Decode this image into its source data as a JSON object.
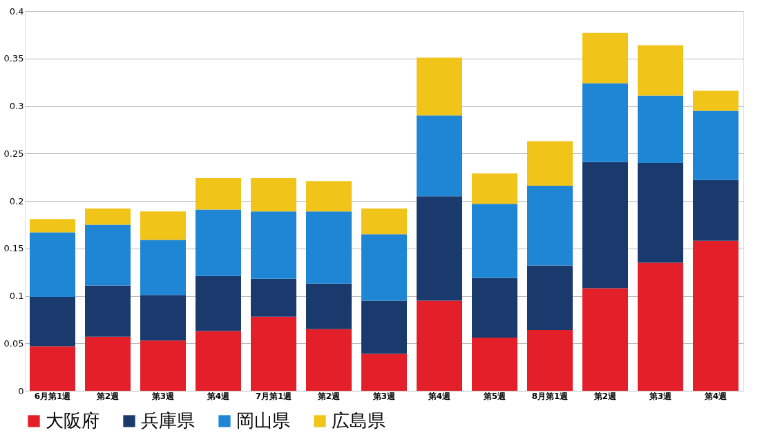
{
  "chart_data": {
    "type": "bar",
    "stacked": true,
    "categories": [
      "6月第1週",
      "第2週",
      "第3週",
      "第4週",
      "7月第1週",
      "第2週",
      "第3週",
      "第4週",
      "第5週",
      "8月第1週",
      "第2週",
      "第3週",
      "第4週"
    ],
    "series": [
      {
        "name": "大阪府",
        "color": "#e3202a",
        "values": [
          0.047,
          0.057,
          0.053,
          0.063,
          0.078,
          0.065,
          0.039,
          0.095,
          0.056,
          0.064,
          0.108,
          0.135,
          0.158
        ]
      },
      {
        "name": "兵庫県",
        "color": "#1a3a6e",
        "values": [
          0.052,
          0.054,
          0.048,
          0.058,
          0.04,
          0.048,
          0.056,
          0.11,
          0.063,
          0.068,
          0.133,
          0.105,
          0.064
        ]
      },
      {
        "name": "岡山県",
        "color": "#1f86d6",
        "values": [
          0.068,
          0.064,
          0.058,
          0.07,
          0.071,
          0.076,
          0.07,
          0.085,
          0.078,
          0.084,
          0.083,
          0.071,
          0.073
        ]
      },
      {
        "name": "広島県",
        "color": "#f0c419",
        "values": [
          0.014,
          0.017,
          0.03,
          0.033,
          0.035,
          0.032,
          0.027,
          0.061,
          0.032,
          0.047,
          0.053,
          0.053,
          0.021
        ]
      }
    ],
    "ylim": [
      0,
      0.4
    ],
    "yticks": [
      0,
      0.05,
      0.1,
      0.15,
      0.2,
      0.25,
      0.3,
      0.35,
      0.4
    ],
    "grid": "y",
    "legend": "bottom"
  }
}
